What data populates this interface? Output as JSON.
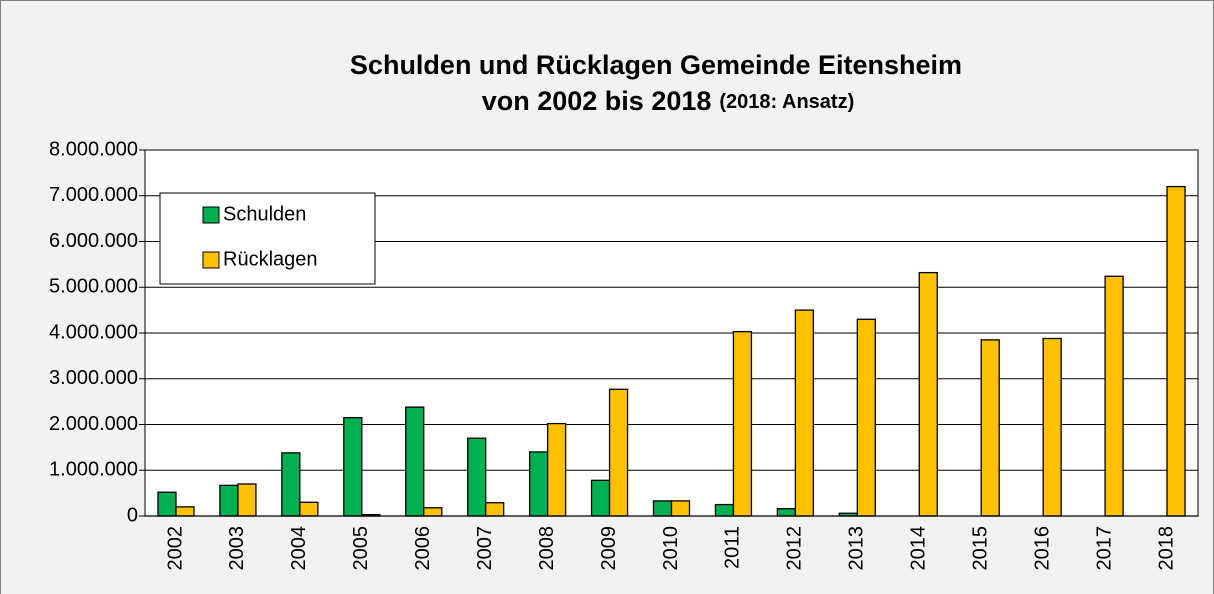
{
  "chart_data": {
    "type": "bar",
    "title": [
      "Schulden und Rücklagen Gemeinde Eitensheim",
      "von 2002 bis 2018"
    ],
    "subtitle": "(2018: Ansatz)",
    "categories": [
      "2002",
      "2003",
      "2004",
      "2005",
      "2006",
      "2007",
      "2008",
      "2009",
      "2010",
      "2011",
      "2012",
      "2013",
      "2014",
      "2015",
      "2016",
      "2017",
      "2018"
    ],
    "series": [
      {
        "name": "Schulden",
        "color": "#00b050",
        "values": [
          520000,
          670000,
          1380000,
          2150000,
          2380000,
          1700000,
          1400000,
          780000,
          330000,
          250000,
          160000,
          60000,
          0,
          0,
          0,
          0,
          0
        ]
      },
      {
        "name": "Rücklagen",
        "color": "#ffc000",
        "values": [
          200000,
          700000,
          300000,
          30000,
          180000,
          290000,
          2020000,
          2770000,
          330000,
          4030000,
          4500000,
          4300000,
          5320000,
          3850000,
          3880000,
          5240000,
          7200000
        ]
      }
    ],
    "ylim": [
      0,
      8000000
    ],
    "yticks": [
      0,
      {
        "value": 1000000,
        "label": "1.000.000"
      },
      {
        "value": 2000000,
        "label": "2.000.000"
      },
      {
        "value": 3000000,
        "label": "3.000.000"
      },
      {
        "value": 4000000,
        "label": "4.000.000"
      },
      {
        "value": 5000000,
        "label": "5.000.000"
      },
      {
        "value": 6000000,
        "label": "6.000.000"
      },
      {
        "value": 7000000,
        "label": "7.000.000"
      },
      {
        "value": 8000000,
        "label": "8.000.000"
      }
    ],
    "grid": true,
    "legend": "upper left"
  }
}
